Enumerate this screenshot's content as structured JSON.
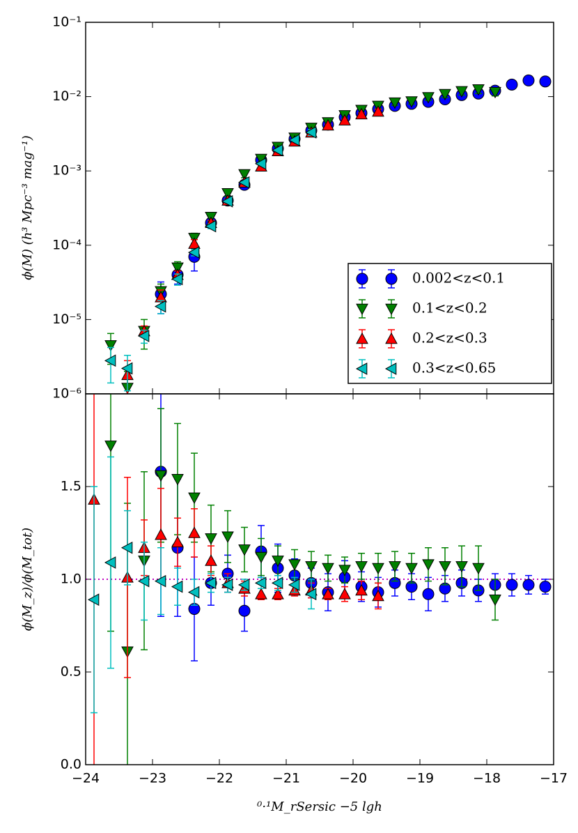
{
  "chart_data": [
    {
      "type": "scatter",
      "ylabel": "ϕ(M) (h³ Mpc⁻³ mag⁻¹)",
      "log_y": true,
      "legend": "lower right",
      "xlim": [
        -24,
        -17
      ],
      "ylim": [
        1e-06,
        0.1
      ],
      "yticks": [
        {
          "value": 1e-06,
          "label": "10⁻⁶"
        },
        {
          "value": 1e-05,
          "label": "10⁻⁵"
        },
        {
          "value": 0.0001,
          "label": "10⁻⁴"
        },
        {
          "value": 0.001,
          "label": "10⁻³"
        },
        {
          "value": 0.01,
          "label": "10⁻²"
        },
        {
          "value": 0.1,
          "label": "10⁻¹"
        }
      ],
      "series": [
        {
          "name": "0.002<z<0.1",
          "color": "#0000ff",
          "marker": "circle",
          "x": [
            -22.875,
            -22.625,
            -22.375,
            -22.125,
            -21.875,
            -21.625,
            -21.375,
            -21.125,
            -20.875,
            -20.625,
            -20.375,
            -20.125,
            -19.875,
            -19.625,
            -19.375,
            -19.125,
            -18.875,
            -18.625,
            -18.375,
            -18.125,
            -17.875,
            -17.625,
            -17.375,
            -17.125
          ],
          "values": [
            2.2e-05,
            4e-05,
            7e-05,
            0.0002,
            0.0004,
            0.00065,
            0.0014,
            0.002,
            0.0027,
            0.0035,
            0.0042,
            0.0053,
            0.006,
            0.0068,
            0.0075,
            0.008,
            0.0085,
            0.0092,
            0.0105,
            0.011,
            0.012,
            0.0145,
            0.0165,
            0.016
          ],
          "errors": [
            1e-05,
            1e-05,
            2.5e-05,
            3e-05,
            5e-05,
            8e-05,
            0.00014,
            0.0002,
            0.00025,
            0.0003,
            0.0004,
            0.0005,
            0.0005,
            0.0006,
            0.0006,
            0.0006,
            0.0007,
            0.0007,
            0.0007,
            0.0007,
            0.0007,
            0.0007,
            0.0008,
            0.0006
          ]
        },
        {
          "name": "0.1<z<0.2",
          "color": "#008000",
          "marker": "triangle-down",
          "x": [
            -23.625,
            -23.375,
            -23.125,
            -22.875,
            -22.625,
            -22.375,
            -22.125,
            -21.875,
            -21.625,
            -21.375,
            -21.125,
            -20.875,
            -20.625,
            -20.375,
            -20.125,
            -19.875,
            -19.625,
            -19.375,
            -19.125,
            -18.875,
            -18.625,
            -18.375,
            -18.125,
            -17.875
          ],
          "values": [
            4.5e-06,
            1.2e-06,
            7e-06,
            2.4e-05,
            5e-05,
            0.000125,
            0.00024,
            0.0005,
            0.0009,
            0.00145,
            0.0021,
            0.0028,
            0.0038,
            0.0045,
            0.0056,
            0.0066,
            0.0075,
            0.0083,
            0.0086,
            0.0098,
            0.0108,
            0.0118,
            0.0125,
            0.0115
          ],
          "errors": [
            2e-06,
            8e-07,
            3e-06,
            6e-06,
            1e-05,
            2e-05,
            3e-05,
            5e-05,
            9e-05,
            0.00012,
            0.00016,
            0.00022,
            0.0003,
            0.00035,
            0.0004,
            0.0005,
            0.0006,
            0.0007,
            0.0007,
            0.0009,
            0.0011,
            0.0013,
            0.0015,
            0.0013
          ]
        },
        {
          "name": "0.2<z<0.3",
          "color": "#ff0000",
          "marker": "triangle-up",
          "x": [
            -23.375,
            -23.125,
            -22.875,
            -22.625,
            -22.375,
            -22.125,
            -21.875,
            -21.625,
            -21.375,
            -21.125,
            -20.875,
            -20.625,
            -20.375,
            -20.125,
            -19.875,
            -19.625
          ],
          "values": [
            1.8e-06,
            7e-06,
            2e-05,
            4e-05,
            0.000105,
            0.0002,
            0.0004,
            0.0007,
            0.00115,
            0.00185,
            0.0025,
            0.0033,
            0.0041,
            0.0048,
            0.0058,
            0.0063
          ],
          "errors": [
            1e-06,
            1.2e-06,
            5e-06,
            5e-06,
            1.4e-05,
            1.6e-05,
            2e-05,
            3e-05,
            5e-05,
            6e-05,
            8e-05,
            0.00011,
            0.00016,
            0.00015,
            0.00025,
            0.00045
          ]
        },
        {
          "name": "0.3<z<0.65",
          "color": "#00bfbf",
          "marker": "triangle-left",
          "x": [
            -23.625,
            -23.375,
            -23.125,
            -22.875,
            -22.625,
            -22.375,
            -22.125,
            -21.875,
            -21.625,
            -21.375,
            -21.125,
            -20.875,
            -20.625
          ],
          "values": [
            2.8e-06,
            2.2e-06,
            6e-06,
            1.5e-05,
            3.5e-05,
            8e-05,
            0.00018,
            0.00039,
            0.0007,
            0.00125,
            0.0019,
            0.0026,
            0.0033
          ],
          "errors": [
            1.4e-06,
            1.1e-06,
            1.2e-06,
            3e-06,
            6e-06,
            8e-06,
            1.3e-05,
            2e-05,
            3e-05,
            4e-05,
            6e-05,
            0.0001,
            0.0003
          ]
        }
      ]
    },
    {
      "type": "scatter",
      "ylabel": "ϕ(M_z)/ϕ(M_tot)",
      "xlabel": "⁰·¹M_rSersic −5 lgh",
      "xlim": [
        -24,
        -17
      ],
      "ylim": [
        0,
        2
      ],
      "xticks": [
        {
          "value": -24,
          "label": "−24"
        },
        {
          "value": -23,
          "label": "−23"
        },
        {
          "value": -22,
          "label": "−22"
        },
        {
          "value": -21,
          "label": "−21"
        },
        {
          "value": -20,
          "label": "−20"
        },
        {
          "value": -19,
          "label": "−19"
        },
        {
          "value": -18,
          "label": "−18"
        },
        {
          "value": -17,
          "label": "−17"
        }
      ],
      "yticks": [
        {
          "value": 0,
          "label": "0.0"
        },
        0.5,
        {
          "value": 1,
          "label": "1.0"
        },
        1.5
      ],
      "hline": {
        "value": 1,
        "color": "#bf00bf"
      },
      "series": [
        {
          "color": "#0000ff",
          "marker": "circle",
          "x": [
            -22.875,
            -22.625,
            -22.375,
            -22.125,
            -21.875,
            -21.625,
            -21.375,
            -21.125,
            -20.875,
            -20.625,
            -20.375,
            -20.125,
            -19.875,
            -19.625,
            -19.375,
            -19.125,
            -18.875,
            -18.625,
            -18.375,
            -18.125,
            -17.875,
            -17.625,
            -17.375,
            -17.125
          ],
          "values": [
            1.58,
            1.17,
            0.84,
            0.98,
            1.03,
            0.83,
            1.15,
            1.06,
            1.02,
            0.98,
            0.93,
            1.01,
            0.96,
            0.93,
            0.98,
            0.96,
            0.92,
            0.95,
            0.98,
            0.94,
            0.97,
            0.97,
            0.97,
            0.96
          ],
          "errors": [
            0.78,
            0.37,
            0.28,
            0.12,
            0.1,
            0.11,
            0.14,
            0.13,
            0.09,
            0.08,
            0.1,
            0.09,
            0.08,
            0.08,
            0.07,
            0.07,
            0.09,
            0.07,
            0.07,
            0.06,
            0.06,
            0.06,
            0.05,
            0.04
          ]
        },
        {
          "color": "#008000",
          "marker": "triangle-down",
          "x": [
            -23.625,
            -23.375,
            -23.125,
            -22.875,
            -22.625,
            -22.375,
            -22.125,
            -21.875,
            -21.625,
            -21.375,
            -21.125,
            -20.875,
            -20.625,
            -20.375,
            -20.125,
            -19.875,
            -19.625,
            -19.375,
            -19.125,
            -18.875,
            -18.625,
            -18.375,
            -18.125,
            -17.875
          ],
          "values": [
            1.72,
            0.61,
            1.1,
            1.56,
            1.54,
            1.44,
            1.22,
            1.23,
            1.16,
            1.12,
            1.1,
            1.08,
            1.07,
            1.06,
            1.05,
            1.07,
            1.06,
            1.07,
            1.06,
            1.08,
            1.07,
            1.07,
            1.06,
            0.89
          ],
          "errors": [
            1.0,
            0.8,
            0.48,
            0.36,
            0.3,
            0.24,
            0.18,
            0.14,
            0.12,
            0.1,
            0.08,
            0.08,
            0.08,
            0.07,
            0.07,
            0.07,
            0.08,
            0.08,
            0.08,
            0.09,
            0.1,
            0.11,
            0.12,
            0.11
          ]
        },
        {
          "color": "#ff0000",
          "marker": "triangle-up",
          "x": [
            -23.875,
            -23.375,
            -23.125,
            -22.875,
            -22.625,
            -22.375,
            -22.125,
            -21.875,
            -21.625,
            -21.375,
            -21.125,
            -20.875,
            -20.625,
            -20.375,
            -20.125,
            -19.875,
            -19.625
          ],
          "values": [
            1.43,
            1.01,
            1.17,
            1.24,
            1.2,
            1.25,
            1.1,
            0.98,
            0.95,
            0.92,
            0.92,
            0.94,
            0.94,
            0.92,
            0.92,
            0.94,
            0.91
          ],
          "errors": [
            1.5,
            0.54,
            0.15,
            0.25,
            0.13,
            0.13,
            0.08,
            0.05,
            0.04,
            0.03,
            0.03,
            0.03,
            0.04,
            0.03,
            0.04,
            0.05,
            0.07
          ]
        },
        {
          "color": "#00bfbf",
          "marker": "triangle-left",
          "x": [
            -23.875,
            -23.625,
            -23.375,
            -23.125,
            -22.875,
            -22.625,
            -22.375,
            -22.125,
            -21.875,
            -21.625,
            -21.375,
            -21.125,
            -20.875,
            -20.625
          ],
          "values": [
            0.89,
            1.09,
            1.17,
            0.99,
            0.99,
            0.96,
            0.93,
            0.98,
            0.97,
            0.97,
            0.98,
            0.98,
            0.97,
            0.92
          ],
          "errors": [
            0.61,
            0.57,
            0.2,
            0.21,
            0.18,
            0.1,
            0.07,
            0.05,
            0.04,
            0.03,
            0.03,
            0.04,
            0.04,
            0.08
          ]
        }
      ]
    }
  ]
}
